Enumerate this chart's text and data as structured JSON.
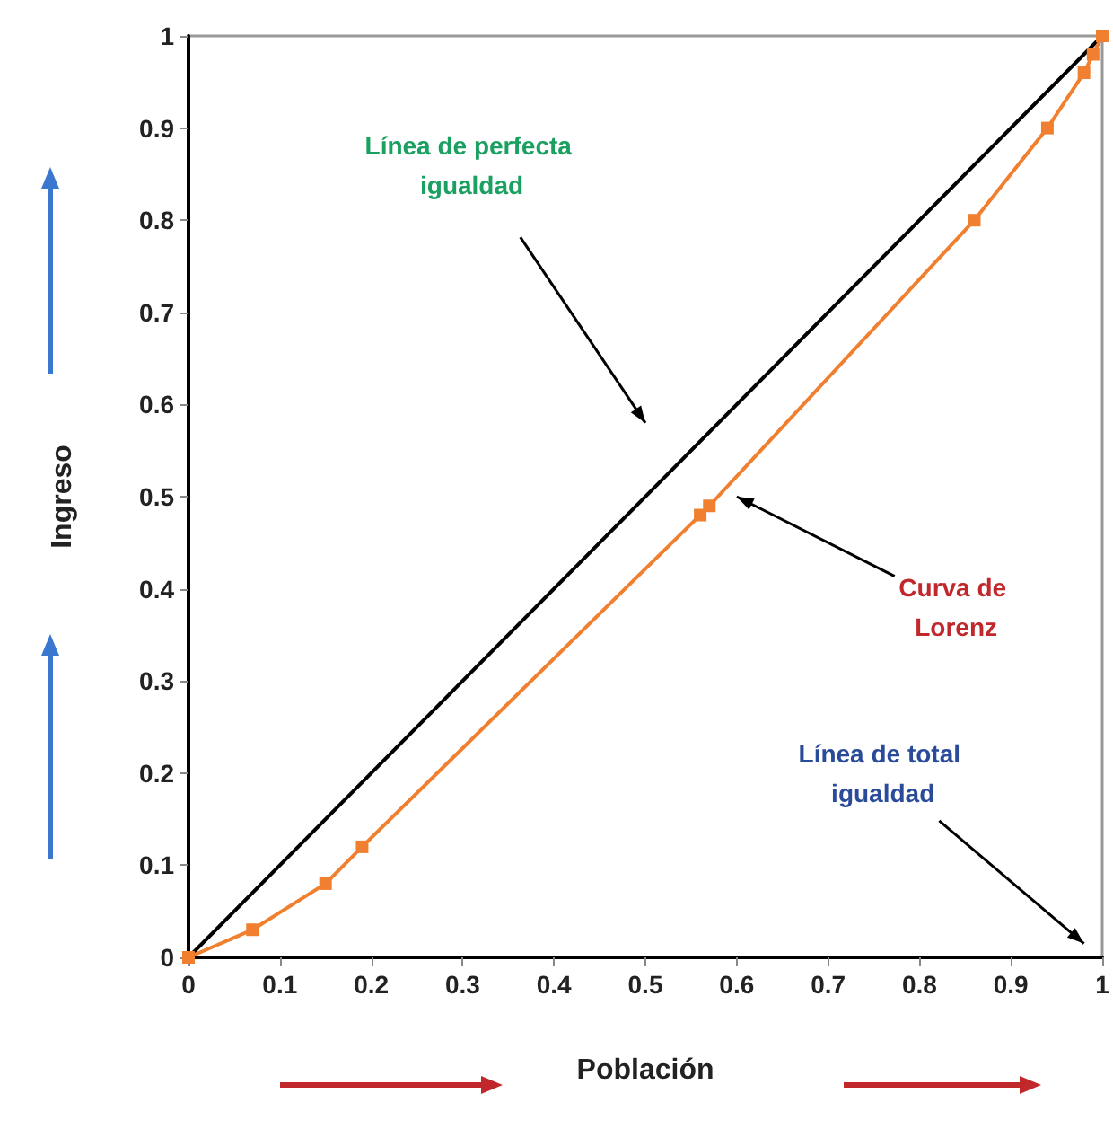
{
  "chart_data": {
    "type": "line",
    "xlabel": "Población",
    "ylabel": "Ingreso",
    "xlim": [
      0,
      1
    ],
    "ylim": [
      0,
      1
    ],
    "xticks": [
      0,
      0.1,
      0.2,
      0.3,
      0.4,
      0.5,
      0.6,
      0.7,
      0.8,
      0.9,
      1
    ],
    "yticks": [
      0,
      0.1,
      0.2,
      0.3,
      0.4,
      0.5,
      0.6,
      0.7,
      0.8,
      0.9,
      1
    ],
    "grid": false,
    "series": [
      {
        "color": "#000000",
        "x": [
          0,
          1
        ],
        "values": [
          0,
          1
        ],
        "marker": "none"
      },
      {
        "color": "#f08030",
        "x": [
          0,
          0.07,
          0.15,
          0.19,
          0.56,
          0.57,
          0.86,
          0.94,
          0.98,
          0.99,
          1
        ],
        "values": [
          0,
          0.03,
          0.08,
          0.12,
          0.48,
          0.49,
          0.8,
          0.9,
          0.96,
          0.98,
          1
        ],
        "marker": "square"
      }
    ],
    "annotations": [
      "Línea de perfecta igualdad",
      "Curva de Lorenz",
      "Línea de total igualdad"
    ]
  }
}
